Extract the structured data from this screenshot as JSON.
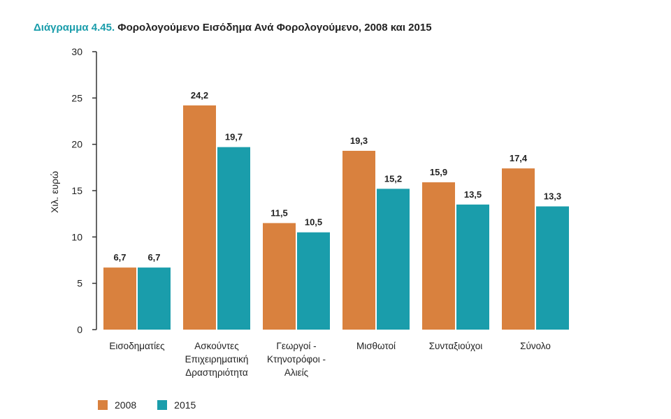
{
  "chart_data": {
    "type": "bar",
    "title_prefix": "Διάγραμμα 4.45.",
    "title": "Φορολογούμενο Εισόδημα Ανά Φορολογούμενο, 2008 και 2015",
    "xlabel": "",
    "ylabel": "Χιλ. ευρώ",
    "ylim": [
      0,
      30
    ],
    "yticks": [
      0,
      5,
      10,
      15,
      20,
      25,
      30
    ],
    "categories": [
      [
        "Εισοδηματίες"
      ],
      [
        "Ασκούντες",
        "Επιχειρηματική",
        "Δραστηριότητα"
      ],
      [
        "Γεωργοί -",
        "Κτηνοτρόφοι -",
        "Αλιείς"
      ],
      [
        "Μισθωτοί"
      ],
      [
        "Συνταξιούχοι"
      ],
      [
        "Σύνολο"
      ]
    ],
    "series": [
      {
        "name": "2008",
        "color": "#d9813e",
        "values": [
          6.7,
          24.2,
          11.5,
          19.3,
          15.9,
          17.4
        ],
        "labels": [
          "6,7",
          "24,2",
          "11,5",
          "19,3",
          "15,9",
          "17,4"
        ]
      },
      {
        "name": "2015",
        "color": "#1a9dab",
        "values": [
          6.7,
          19.7,
          10.5,
          15.2,
          13.5,
          13.3
        ],
        "labels": [
          "6,7",
          "19,7",
          "10,5",
          "15,2",
          "13,5",
          "13,3"
        ]
      }
    ],
    "grid": false,
    "legend_position": "bottom-left"
  }
}
